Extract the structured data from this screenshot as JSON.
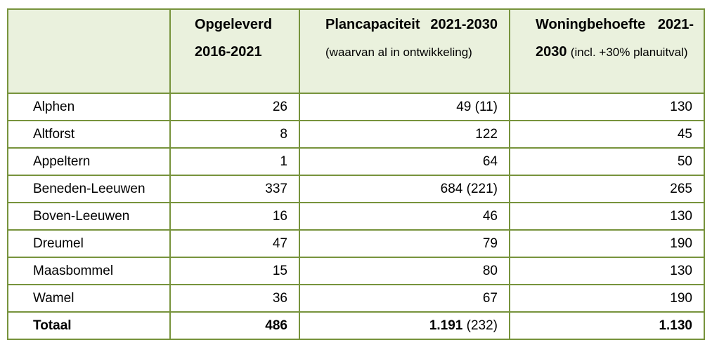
{
  "table": {
    "header": [
      {
        "title": "Opgeleverd 2016-2021"
      },
      {
        "title": "Plancapaciteit 2021-2030",
        "note": "(waarvan al in ontwikkeling)"
      },
      {
        "title": "Woningbehoefte 2021-2030",
        "note": "(incl. +30% planuitval)"
      }
    ],
    "rows": [
      [
        "Alphen",
        "26",
        "49 (11)",
        "130"
      ],
      [
        "Altforst",
        "8",
        "122",
        "45"
      ],
      [
        "Appeltern",
        "1",
        "64",
        "50"
      ],
      [
        "Beneden-Leeuwen",
        "337",
        "684 (221)",
        "265"
      ],
      [
        "Boven-Leeuwen",
        "16",
        "46",
        "130"
      ],
      [
        "Dreumel",
        "47",
        "79",
        "190"
      ],
      [
        "Maasbommel",
        "15",
        "80",
        "130"
      ],
      [
        "Wamel",
        "36",
        "67",
        "190"
      ]
    ],
    "total": {
      "label": "Totaal",
      "delivered": "486",
      "capacity": "1.191",
      "capacity_note": "(232)",
      "need": "1.130"
    }
  }
}
